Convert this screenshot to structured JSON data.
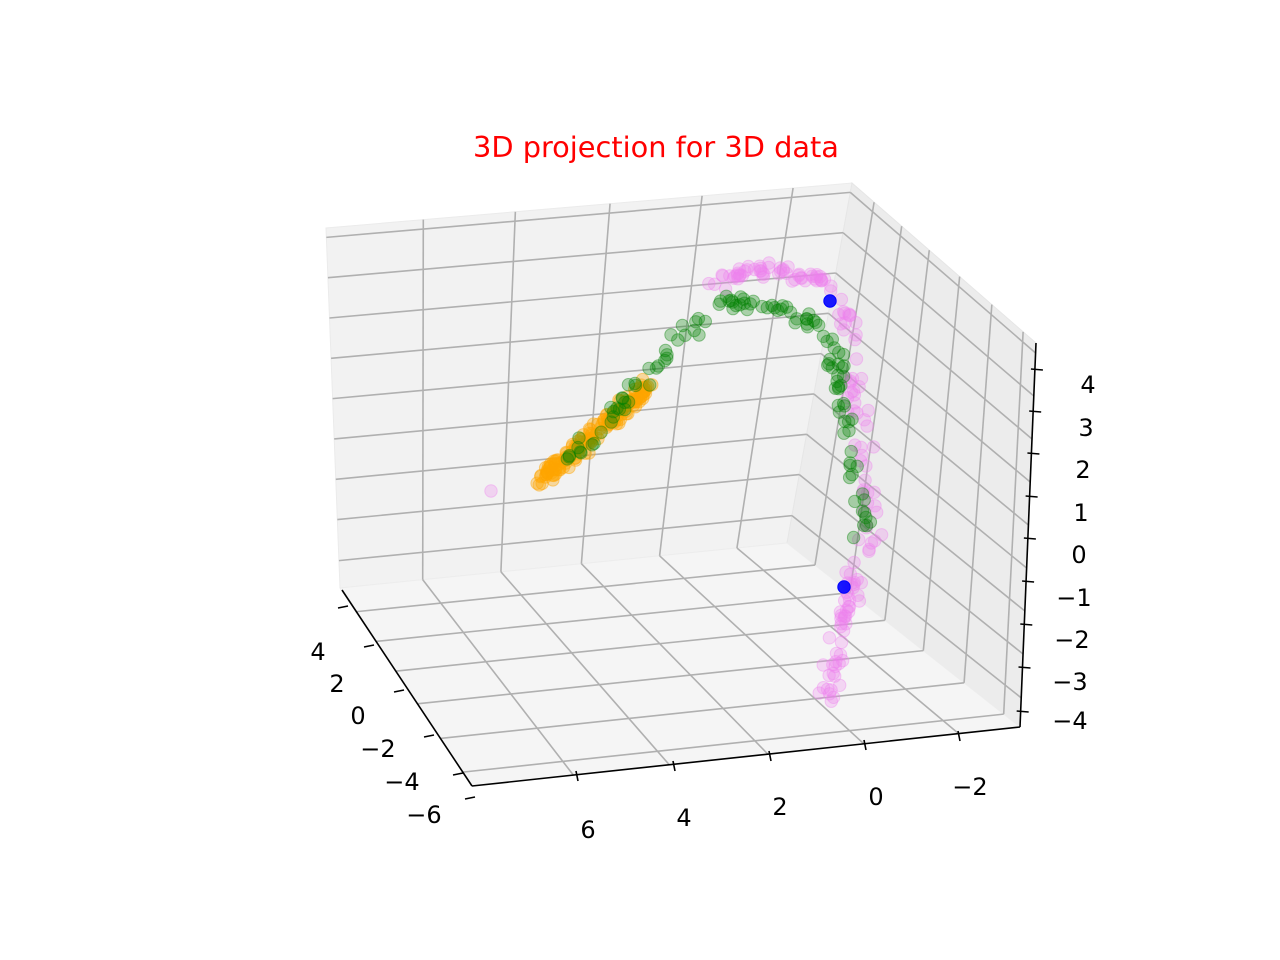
{
  "chart_data": {
    "type": "scatter",
    "title": "3D projection for 3D data",
    "title_color": "#ff0000",
    "projection": "3d",
    "grid": true,
    "legend": "none",
    "axes": {
      "x": {
        "tick_labels": [
          "4",
          "2",
          "0",
          "−2",
          "−4",
          "−6"
        ]
      },
      "y": {
        "tick_labels": [
          "6",
          "4",
          "2",
          "0",
          "−2"
        ]
      },
      "z": {
        "tick_labels": [
          "4",
          "3",
          "2",
          "1",
          "0",
          "−1",
          "−2",
          "−3",
          "−4"
        ]
      }
    },
    "series_colors": {
      "orange": "#ffa500",
      "green": "#008000",
      "violet": "#ee82ee",
      "blue": "#0000ff"
    }
  }
}
